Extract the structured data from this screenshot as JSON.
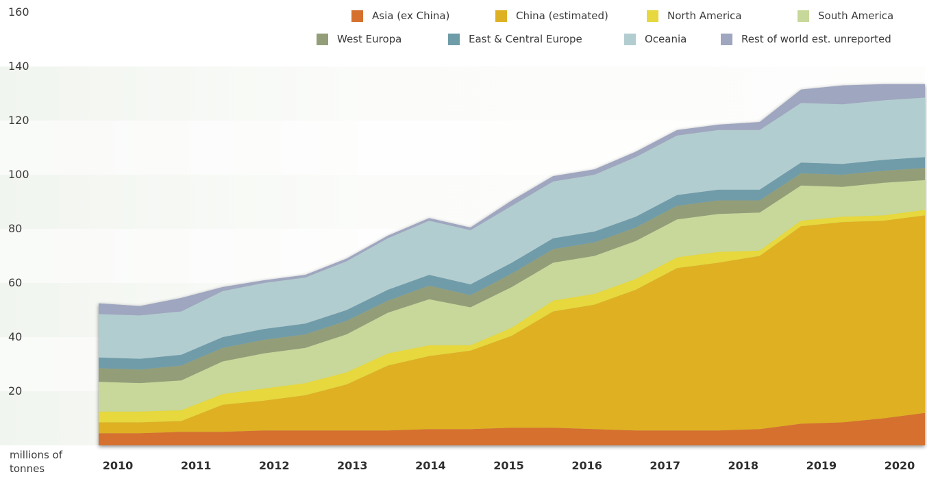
{
  "chart_data": {
    "type": "area",
    "stacked": true,
    "title": "",
    "xlabel": "",
    "ylabel": "millions of tonnes",
    "ylabel_lines": [
      "millions of",
      "tonnes"
    ],
    "ylim": [
      0,
      160
    ],
    "y_ticks": [
      20,
      40,
      60,
      80,
      100,
      120,
      140,
      160
    ],
    "x_tick_labels": [
      "2010",
      "2011",
      "2012",
      "2013",
      "2014",
      "2015",
      "2016",
      "2017",
      "2018",
      "2019",
      "2020"
    ],
    "x": [
      2010,
      2010.5,
      2011,
      2011.5,
      2012,
      2012.5,
      2013,
      2013.5,
      2014,
      2014.5,
      2015,
      2015.5,
      2016,
      2016.5,
      2017,
      2017.5,
      2018,
      2018.5,
      2019,
      2019.5,
      2020
    ],
    "series": [
      {
        "name": "Asia (ex China)",
        "color": "#d5702e",
        "values": [
          4.5,
          4.5,
          5,
          5,
          5.5,
          5.5,
          5.5,
          5.5,
          6,
          6,
          6.5,
          6.5,
          6,
          5.5,
          5.5,
          5.5,
          6,
          8,
          8.5,
          10,
          12
        ]
      },
      {
        "name": "China (estimated)",
        "color": "#deb024",
        "values": [
          4,
          4,
          4,
          10,
          11,
          13,
          17,
          24,
          27,
          29,
          34,
          43,
          46,
          52,
          60,
          62,
          64,
          73,
          74,
          73,
          73
        ]
      },
      {
        "name": "North America",
        "color": "#e6d83e",
        "values": [
          4,
          4,
          4,
          4,
          4.5,
          4.5,
          4.5,
          4.5,
          4,
          2,
          3,
          4,
          4,
          4,
          4,
          4,
          2,
          2,
          2,
          2,
          2
        ]
      },
      {
        "name": "South America",
        "color": "#c8d89a",
        "values": [
          11,
          10.5,
          11,
          12,
          13,
          13,
          14,
          15,
          17,
          14,
          15,
          14,
          14,
          14,
          14,
          14,
          14,
          13,
          11,
          12,
          11
        ]
      },
      {
        "name": "West Europa",
        "color": "#939e78",
        "values": [
          5,
          5,
          5.5,
          5,
          5,
          5,
          5,
          4.5,
          5,
          4.5,
          5,
          5,
          5,
          5,
          5,
          5,
          4.5,
          4.5,
          4.5,
          4.5,
          4.5
        ]
      },
      {
        "name": "East & Central Europe",
        "color": "#6f9ca9",
        "values": [
          4,
          4,
          4,
          4,
          4,
          4,
          4,
          4,
          4,
          4,
          4,
          4,
          4,
          4,
          4,
          4,
          4,
          4,
          4,
          4,
          4
        ]
      },
      {
        "name": "Oceania",
        "color": "#b2cdd0",
        "values": [
          16,
          16,
          16,
          17,
          17,
          17,
          18,
          19,
          20,
          20,
          21,
          21,
          21,
          22,
          22,
          22,
          22,
          22,
          22,
          22,
          22
        ]
      },
      {
        "name": "Rest of world est. unreported",
        "color": "#9fa6bf",
        "values": [
          4,
          3.5,
          5,
          1.5,
          1,
          1,
          1,
          1,
          1,
          1,
          2,
          2,
          2,
          2,
          2,
          2,
          3,
          5,
          7,
          6,
          5
        ]
      }
    ]
  }
}
